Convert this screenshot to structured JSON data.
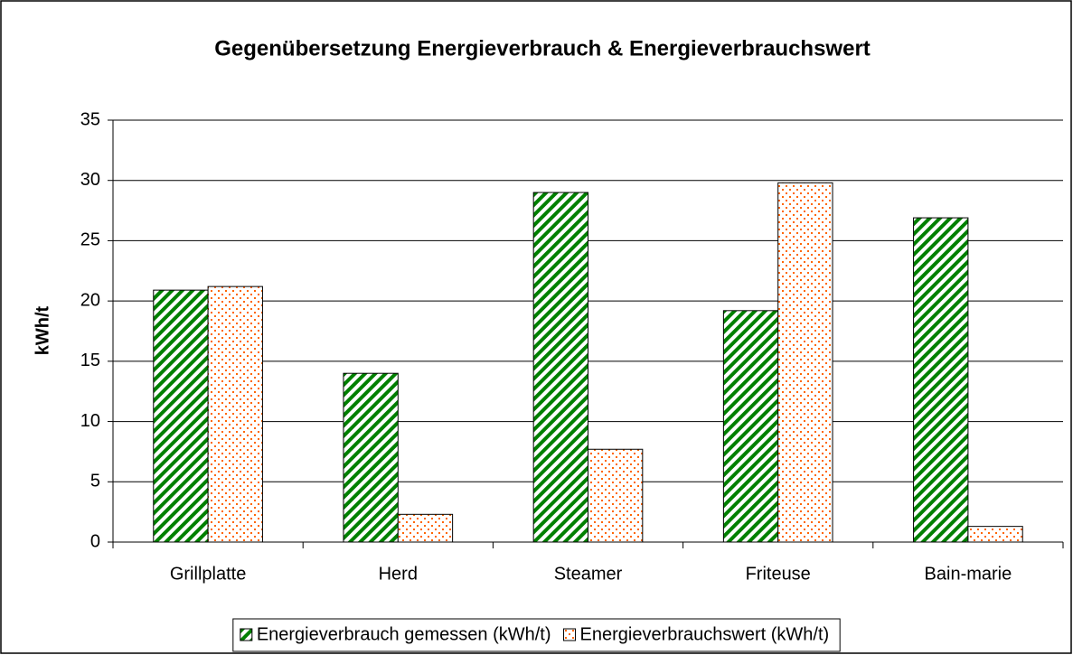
{
  "chart_data": {
    "type": "bar",
    "title": "Gegenübersetzung Energieverbrauch & Energieverbrauchswert",
    "y_label": "kWh/t",
    "categories": [
      "Grillplatte",
      "Herd",
      "Steamer",
      "Friteuse",
      "Bain-marie"
    ],
    "series": [
      {
        "name": "Energieverbrauch gemessen (kWh/t)",
        "color": "#008000",
        "values": [
          20.9,
          14.0,
          29.0,
          19.2,
          26.9
        ]
      },
      {
        "name": "Energieverbrauchswert (kWh/t)",
        "color": "#ff6600",
        "values": [
          21.2,
          2.3,
          7.7,
          29.8,
          1.3
        ]
      }
    ],
    "ylim": [
      0,
      35
    ],
    "yticks": [
      0,
      5,
      10,
      15,
      20,
      25,
      30,
      35
    ],
    "grid": true,
    "legend": "bottom"
  }
}
